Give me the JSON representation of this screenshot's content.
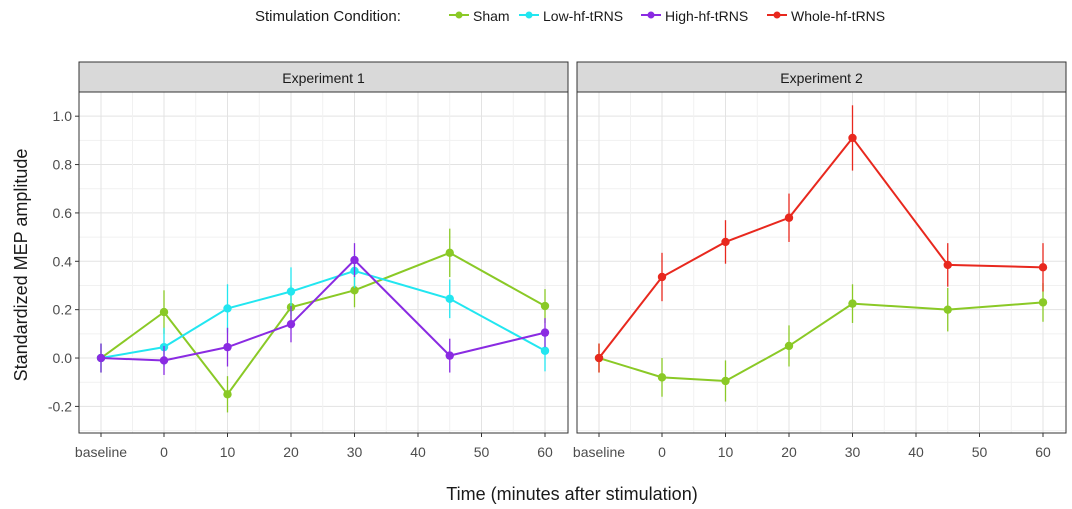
{
  "chart_data": {
    "type": "line",
    "legend": {
      "title": "Stimulation Condition:",
      "placement": "top",
      "entries": [
        {
          "name": "Sham",
          "color": "#8ac926"
        },
        {
          "name": "Low-hf-tRNS",
          "color": "#22e6f0"
        },
        {
          "name": "High-hf-tRNS",
          "color": "#8a2be2"
        },
        {
          "name": "Whole-hf-tRNS",
          "color": "#e8281e"
        }
      ]
    },
    "xlabel": "Time (minutes after stimulation)",
    "ylabel": "Standardized MEP amplitude",
    "x_ticks": [
      "baseline",
      "0",
      "10",
      "20",
      "30",
      "40",
      "50",
      "60"
    ],
    "y_ticks": [
      "-0.2",
      "0.0",
      "0.2",
      "0.4",
      "0.6",
      "0.8",
      "1.0"
    ],
    "ylim": [
      -0.31,
      1.1
    ],
    "grid": true,
    "panels": [
      {
        "title": "Experiment 1",
        "series": [
          {
            "name": "Sham",
            "color": "#8ac926",
            "x": [
              "baseline",
              0,
              10,
              20,
              30,
              45,
              60
            ],
            "y": [
              0.0,
              0.19,
              -0.15,
              0.21,
              0.28,
              0.435,
              0.215
            ],
            "err": [
              0.06,
              0.09,
              0.075,
              0.09,
              0.07,
              0.1,
              0.07
            ]
          },
          {
            "name": "Low-hf-tRNS",
            "color": "#22e6f0",
            "x": [
              "baseline",
              0,
              10,
              20,
              30,
              45,
              60
            ],
            "y": [
              0.0,
              0.045,
              0.205,
              0.275,
              0.36,
              0.245,
              0.03
            ],
            "err": [
              0.06,
              0.08,
              0.1,
              0.1,
              0.07,
              0.08,
              0.085
            ]
          },
          {
            "name": "High-hf-tRNS",
            "color": "#8a2be2",
            "x": [
              "baseline",
              0,
              10,
              20,
              30,
              45,
              60
            ],
            "y": [
              0.0,
              -0.01,
              0.045,
              0.14,
              0.405,
              0.01,
              0.105
            ],
            "err": [
              0.06,
              0.06,
              0.08,
              0.075,
              0.07,
              0.07,
              0.06
            ]
          }
        ]
      },
      {
        "title": "Experiment 2",
        "series": [
          {
            "name": "Sham",
            "color": "#8ac926",
            "x": [
              "baseline",
              0,
              10,
              20,
              30,
              45,
              60
            ],
            "y": [
              0.0,
              -0.08,
              -0.095,
              0.05,
              0.225,
              0.2,
              0.23
            ],
            "err": [
              0.06,
              0.08,
              0.085,
              0.085,
              0.08,
              0.09,
              0.08
            ]
          },
          {
            "name": "Whole-hf-tRNS",
            "color": "#e8281e",
            "x": [
              "baseline",
              0,
              10,
              20,
              30,
              45,
              60
            ],
            "y": [
              0.0,
              0.335,
              0.48,
              0.58,
              0.91,
              0.385,
              0.375
            ],
            "err": [
              0.06,
              0.1,
              0.09,
              0.1,
              0.135,
              0.09,
              0.1
            ]
          }
        ]
      }
    ]
  }
}
